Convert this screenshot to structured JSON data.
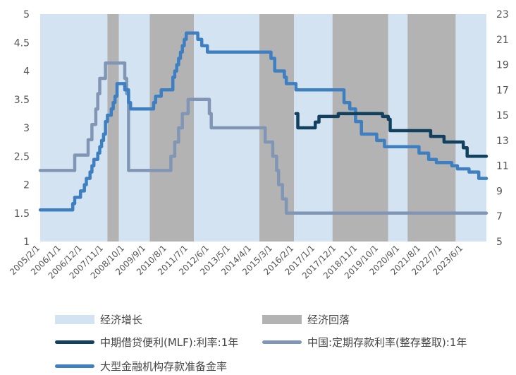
{
  "chart_data": {
    "type": "line",
    "title": "",
    "x_tick_labels": [
      "2005/2/1",
      "2006/1/1",
      "2006/12/1",
      "2007/11/1",
      "2008/10/1",
      "2009/9/1",
      "2010/8/1",
      "2011/7/1",
      "2012/6/1",
      "2013/5/1",
      "2014/4/1",
      "2015/3/1",
      "2016/2/1",
      "2017/1/1",
      "2017/12/1",
      "2018/11/1",
      "2019/10/1",
      "2020/9/1",
      "2021/8/1",
      "2022/7/1",
      "2023/6/1"
    ],
    "x_range": [
      "2005-02-01",
      "2024-06-01"
    ],
    "y_left": {
      "range": [
        1,
        5
      ],
      "ticks": [
        "1",
        "1.5",
        "2",
        "2.5",
        "3",
        "3.5",
        "4",
        "4.5",
        "5"
      ]
    },
    "y_right": {
      "range": [
        5,
        23
      ],
      "ticks": [
        "5",
        "7",
        "9",
        "11",
        "13",
        "15",
        "17",
        "19",
        "21",
        "23"
      ]
    },
    "grid": false,
    "legend_position": "bottom",
    "colors": {
      "expansion": "#d4e3f2",
      "contraction": "#b3b3b3",
      "mlf": "#11415e",
      "deposit": "#8196b5",
      "rrr": "#3d7fc1"
    },
    "shaded_periods": [
      {
        "phase": "expansion",
        "start": "2005-02-01",
        "end": "2008-01-01"
      },
      {
        "phase": "contraction",
        "start": "2008-01-01",
        "end": "2008-07-01"
      },
      {
        "phase": "expansion",
        "start": "2008-07-01",
        "end": "2009-11-01"
      },
      {
        "phase": "contraction",
        "start": "2009-11-01",
        "end": "2011-10-01"
      },
      {
        "phase": "expansion",
        "start": "2011-10-01",
        "end": "2014-08-01"
      },
      {
        "phase": "contraction",
        "start": "2014-08-01",
        "end": "2016-02-01"
      },
      {
        "phase": "expansion",
        "start": "2016-02-01",
        "end": "2017-10-01"
      },
      {
        "phase": "contraction",
        "start": "2017-10-01",
        "end": "2020-03-01"
      },
      {
        "phase": "expansion",
        "start": "2020-03-01",
        "end": "2021-01-01"
      },
      {
        "phase": "contraction",
        "start": "2021-01-01",
        "end": "2023-02-01"
      },
      {
        "phase": "expansion",
        "start": "2023-02-01",
        "end": "2024-06-01"
      }
    ],
    "series": [
      {
        "name": "中期借贷便利(MLF):利率:1年",
        "axis": "left",
        "points": [
          [
            "2016-03-01",
            3.25
          ],
          [
            "2016-04-01",
            3.0
          ],
          [
            "2017-01-01",
            3.1
          ],
          [
            "2017-03-01",
            3.2
          ],
          [
            "2018-01-01",
            3.25
          ],
          [
            "2019-11-01",
            3.25
          ],
          [
            "2019-12-01",
            3.2
          ],
          [
            "2020-03-01",
            3.15
          ],
          [
            "2020-04-01",
            2.95
          ],
          [
            "2022-01-01",
            2.85
          ],
          [
            "2022-08-01",
            2.75
          ],
          [
            "2023-06-01",
            2.65
          ],
          [
            "2023-08-01",
            2.5
          ],
          [
            "2024-06-01",
            2.5
          ]
        ]
      },
      {
        "name": "中国:定期存款利率(整存整取):1年",
        "axis": "left",
        "points": [
          [
            "2005-02-01",
            2.25
          ],
          [
            "2006-08-01",
            2.52
          ],
          [
            "2007-03-01",
            2.79
          ],
          [
            "2007-05-01",
            3.06
          ],
          [
            "2007-07-01",
            3.33
          ],
          [
            "2007-08-01",
            3.6
          ],
          [
            "2007-09-01",
            3.87
          ],
          [
            "2007-12-01",
            4.14
          ],
          [
            "2008-10-01",
            3.87
          ],
          [
            "2008-11-01",
            3.6
          ],
          [
            "2008-12-01",
            2.25
          ],
          [
            "2010-10-01",
            2.5
          ],
          [
            "2010-12-01",
            2.75
          ],
          [
            "2011-02-01",
            3.0
          ],
          [
            "2011-04-01",
            3.25
          ],
          [
            "2011-07-01",
            3.5
          ],
          [
            "2012-06-01",
            3.25
          ],
          [
            "2012-07-01",
            3.0
          ],
          [
            "2014-11-01",
            2.75
          ],
          [
            "2015-03-01",
            2.5
          ],
          [
            "2015-05-01",
            2.25
          ],
          [
            "2015-06-01",
            2.0
          ],
          [
            "2015-08-01",
            1.75
          ],
          [
            "2015-10-01",
            1.5
          ],
          [
            "2024-06-01",
            1.5
          ]
        ]
      },
      {
        "name": "大型金融机构存款准备金率",
        "axis": "right",
        "points": [
          [
            "2005-02-01",
            7.5
          ],
          [
            "2006-07-01",
            8.0
          ],
          [
            "2006-08-01",
            8.5
          ],
          [
            "2006-11-01",
            9.0
          ],
          [
            "2007-01-01",
            9.5
          ],
          [
            "2007-02-01",
            10.0
          ],
          [
            "2007-04-01",
            10.5
          ],
          [
            "2007-05-01",
            11.0
          ],
          [
            "2007-06-01",
            11.5
          ],
          [
            "2007-08-01",
            12.0
          ],
          [
            "2007-09-01",
            12.5
          ],
          [
            "2007-10-01",
            13.0
          ],
          [
            "2007-11-01",
            13.5
          ],
          [
            "2007-12-01",
            14.5
          ],
          [
            "2008-01-01",
            15.0
          ],
          [
            "2008-03-01",
            15.5
          ],
          [
            "2008-04-01",
            16.0
          ],
          [
            "2008-05-01",
            16.5
          ],
          [
            "2008-06-01",
            17.5
          ],
          [
            "2008-10-01",
            17.0
          ],
          [
            "2008-12-01",
            16.0
          ],
          [
            "2009-01-01",
            15.5
          ],
          [
            "2010-01-01",
            16.0
          ],
          [
            "2010-02-01",
            16.5
          ],
          [
            "2010-05-01",
            17.0
          ],
          [
            "2010-11-01",
            18.0
          ],
          [
            "2010-12-01",
            18.5
          ],
          [
            "2011-01-01",
            19.0
          ],
          [
            "2011-02-01",
            19.5
          ],
          [
            "2011-03-01",
            20.0
          ],
          [
            "2011-04-01",
            20.5
          ],
          [
            "2011-05-01",
            21.0
          ],
          [
            "2011-06-01",
            21.5
          ],
          [
            "2011-12-01",
            21.0
          ],
          [
            "2012-02-01",
            20.5
          ],
          [
            "2012-05-01",
            20.0
          ],
          [
            "2015-02-01",
            19.5
          ],
          [
            "2015-04-01",
            18.5
          ],
          [
            "2015-09-01",
            18.0
          ],
          [
            "2015-10-01",
            17.5
          ],
          [
            "2016-03-01",
            17.0
          ],
          [
            "2018-04-01",
            16.0
          ],
          [
            "2018-07-01",
            15.5
          ],
          [
            "2018-10-01",
            14.5
          ],
          [
            "2019-01-01",
            13.5
          ],
          [
            "2019-09-01",
            13.0
          ],
          [
            "2020-01-01",
            12.5
          ],
          [
            "2021-07-01",
            12.0
          ],
          [
            "2021-12-01",
            11.5
          ],
          [
            "2022-04-01",
            11.25
          ],
          [
            "2022-12-01",
            11.0
          ],
          [
            "2023-03-01",
            10.75
          ],
          [
            "2023-09-01",
            10.5
          ],
          [
            "2024-02-01",
            10.0
          ],
          [
            "2024-06-01",
            10.0
          ]
        ]
      }
    ]
  },
  "legend": {
    "expansion": "经济增长",
    "contraction": "经济回落",
    "mlf": "中期借贷便利(MLF):利率:1年",
    "deposit": "中国:定期存款利率(整存整取):1年",
    "rrr": "大型金融机构存款准备金率"
  }
}
